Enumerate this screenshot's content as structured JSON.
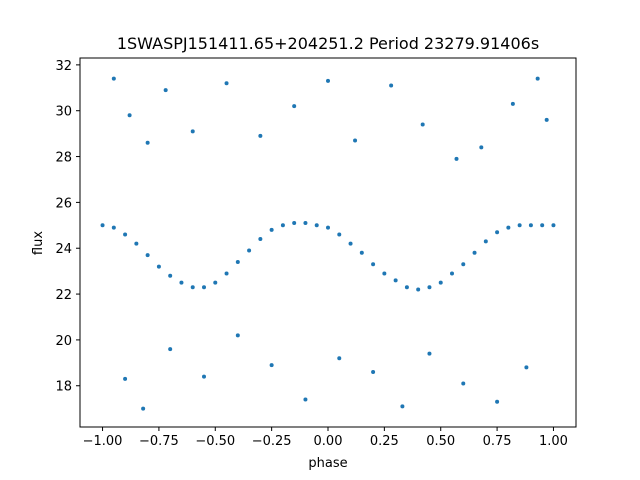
{
  "chart_data": {
    "type": "scatter",
    "title": "1SWASPJ151411.65+204251.2 Period 23279.91406s",
    "xlabel": "phase",
    "ylabel": "flux",
    "xlim": [
      -1.1,
      1.1
    ],
    "ylim": [
      16.2,
      32.3
    ],
    "xticks": [
      -1.0,
      -0.75,
      -0.5,
      -0.25,
      0.0,
      0.25,
      0.5,
      0.75,
      1.0
    ],
    "xtick_labels": [
      "−1.00",
      "−0.75",
      "−0.50",
      "−0.25",
      "0.00",
      "0.25",
      "0.50",
      "0.75",
      "1.00"
    ],
    "yticks": [
      18,
      20,
      22,
      24,
      26,
      28,
      30,
      32
    ],
    "ytick_labels": [
      "18",
      "20",
      "22",
      "24",
      "26",
      "28",
      "30",
      "32"
    ],
    "grid": false,
    "marker_color": "#1f77b4",
    "series": [
      {
        "points": [
          [
            -1.0,
            25.0
          ],
          [
            -0.95,
            24.9
          ],
          [
            -0.9,
            24.6
          ],
          [
            -0.85,
            24.2
          ],
          [
            -0.8,
            23.7
          ],
          [
            -0.75,
            23.2
          ],
          [
            -0.7,
            22.8
          ],
          [
            -0.65,
            22.5
          ],
          [
            -0.6,
            22.3
          ],
          [
            -0.55,
            22.3
          ],
          [
            -0.5,
            22.5
          ],
          [
            -0.45,
            22.9
          ],
          [
            -0.4,
            23.4
          ],
          [
            -0.35,
            23.9
          ],
          [
            -0.3,
            24.4
          ],
          [
            -0.25,
            24.8
          ],
          [
            -0.2,
            25.0
          ],
          [
            -0.15,
            25.1
          ],
          [
            -0.1,
            25.1
          ],
          [
            -0.05,
            25.0
          ],
          [
            0.0,
            24.9
          ],
          [
            0.05,
            24.6
          ],
          [
            0.1,
            24.2
          ],
          [
            0.15,
            23.8
          ],
          [
            0.2,
            23.3
          ],
          [
            0.25,
            22.9
          ],
          [
            0.3,
            22.6
          ],
          [
            0.35,
            22.3
          ],
          [
            0.4,
            22.2
          ],
          [
            0.45,
            22.3
          ],
          [
            0.5,
            22.5
          ],
          [
            0.55,
            22.9
          ],
          [
            0.6,
            23.3
          ],
          [
            0.65,
            23.8
          ],
          [
            0.7,
            24.3
          ],
          [
            0.75,
            24.7
          ],
          [
            0.8,
            24.9
          ],
          [
            0.85,
            25.0
          ],
          [
            0.9,
            25.0
          ],
          [
            0.95,
            25.0
          ],
          [
            1.0,
            25.0
          ],
          [
            -0.95,
            31.4
          ],
          [
            -0.88,
            29.8
          ],
          [
            -0.8,
            28.6
          ],
          [
            -0.72,
            30.9
          ],
          [
            -0.6,
            29.1
          ],
          [
            -0.45,
            31.2
          ],
          [
            -0.3,
            28.9
          ],
          [
            -0.15,
            30.2
          ],
          [
            0.0,
            31.3
          ],
          [
            0.12,
            28.7
          ],
          [
            0.28,
            31.1
          ],
          [
            0.42,
            29.4
          ],
          [
            0.57,
            27.9
          ],
          [
            0.68,
            28.4
          ],
          [
            0.82,
            30.3
          ],
          [
            0.93,
            31.4
          ],
          [
            0.97,
            29.6
          ],
          [
            -0.9,
            18.3
          ],
          [
            -0.82,
            17.0
          ],
          [
            -0.7,
            19.6
          ],
          [
            -0.55,
            18.4
          ],
          [
            -0.4,
            20.2
          ],
          [
            -0.25,
            18.9
          ],
          [
            -0.1,
            17.4
          ],
          [
            0.05,
            19.2
          ],
          [
            0.2,
            18.6
          ],
          [
            0.33,
            17.1
          ],
          [
            0.45,
            19.4
          ],
          [
            0.6,
            18.1
          ],
          [
            0.75,
            17.3
          ],
          [
            0.88,
            18.8
          ]
        ]
      }
    ]
  }
}
